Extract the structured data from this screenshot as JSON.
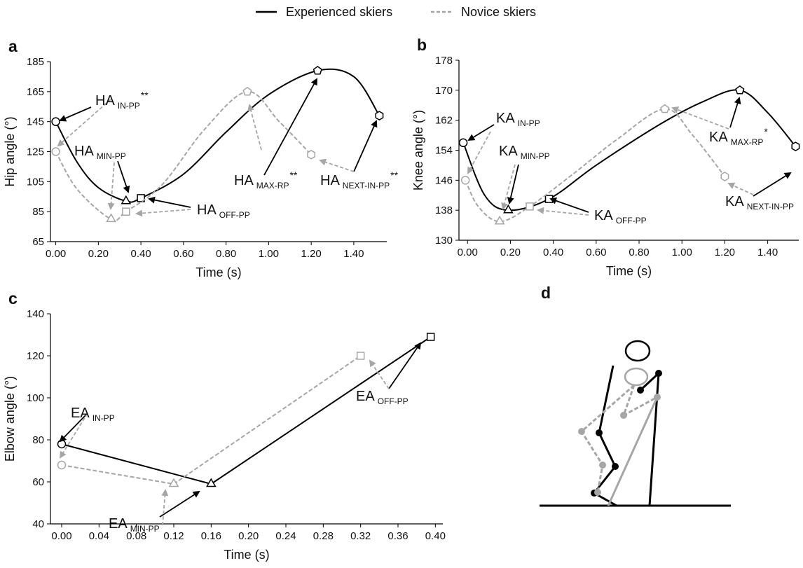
{
  "legend_chart": 0,
  "chart_data": [
    {
      "type": "line",
      "panel": "a",
      "x_label": "Time (s)",
      "y_label": "Hip angle (°)",
      "smooth": true,
      "xlim": [
        -0.025,
        1.555
      ],
      "ylim": [
        65,
        185
      ],
      "xticks": [
        {
          "value": 0,
          "label": "0.00"
        },
        {
          "value": 0.2,
          "label": "0.20"
        },
        {
          "value": 0.4,
          "label": "0.40"
        },
        {
          "value": 0.6,
          "label": "0.60"
        },
        {
          "value": 0.8,
          "label": "0.80"
        },
        {
          "value": 1.0,
          "label": "1.00"
        },
        {
          "value": 1.2,
          "label": "1.20"
        },
        {
          "value": 1.4,
          "label": "1.40"
        }
      ],
      "yticks": [
        65,
        85,
        105,
        125,
        145,
        165,
        185
      ],
      "series": [
        {
          "name": "Experienced skiers",
          "color": "#000000",
          "dash": false,
          "x": [
            0,
            0.1,
            0.2,
            0.33,
            0.4,
            0.6,
            0.8,
            1.0,
            1.23,
            1.4,
            1.52
          ],
          "values": [
            145,
            118,
            101,
            92,
            94,
            110,
            138,
            163,
            179,
            175,
            149
          ],
          "markers": [
            "circle",
            null,
            null,
            "triangle",
            "square",
            null,
            null,
            null,
            "pentagon",
            null,
            "hexagon"
          ]
        },
        {
          "name": "Novice skiers",
          "color": "#a6a6a6",
          "dash": true,
          "x": [
            0,
            0.1,
            0.26,
            0.33,
            0.5,
            0.7,
            0.9,
            1.05,
            1.2
          ],
          "values": [
            125,
            100,
            80,
            85,
            103,
            140,
            165,
            145,
            123
          ],
          "markers": [
            "circle",
            null,
            "triangle",
            "square",
            null,
            null,
            "pentagon",
            null,
            "hexagon"
          ]
        }
      ],
      "annotations": [
        {
          "text": "HA",
          "sub": "IN-PP",
          "sup": "**"
        },
        {
          "text": "HA",
          "sub": "MIN-PP"
        },
        {
          "text": "HA",
          "sub": "OFF-PP"
        },
        {
          "text": "HA",
          "sub": "MAX-RP",
          "sup": "**"
        },
        {
          "text": "HA",
          "sub": "NEXT-IN-PP",
          "sup": "**"
        }
      ]
    },
    {
      "type": "line",
      "panel": "b",
      "x_label": "Time (s)",
      "y_label": "Knee angle (°)",
      "smooth": true,
      "xlim": [
        -0.04,
        1.545
      ],
      "ylim": [
        130,
        178
      ],
      "xticks": [
        {
          "value": 0,
          "label": "0.00"
        },
        {
          "value": 0.2,
          "label": "0.20"
        },
        {
          "value": 0.4,
          "label": "0.40"
        },
        {
          "value": 0.6,
          "label": "0.60"
        },
        {
          "value": 0.8,
          "label": "0.80"
        },
        {
          "value": 1.0,
          "label": "1.00"
        },
        {
          "value": 1.2,
          "label": "1.20"
        },
        {
          "value": 1.4,
          "label": "1.40"
        }
      ],
      "yticks": [
        130,
        138,
        146,
        154,
        162,
        170,
        178
      ],
      "series": [
        {
          "color": "#000000",
          "dash": false,
          "x": [
            -0.02,
            0.08,
            0.19,
            0.38,
            0.6,
            0.9,
            1.1,
            1.27,
            1.4,
            1.53
          ],
          "values": [
            156,
            142,
            138,
            141,
            150,
            161,
            167,
            170,
            164,
            155
          ],
          "markers": [
            "circle",
            null,
            "triangle",
            "square",
            null,
            null,
            null,
            "pentagon",
            null,
            "hexagon"
          ]
        },
        {
          "color": "#a6a6a6",
          "dash": true,
          "x": [
            -0.01,
            0.05,
            0.15,
            0.29,
            0.5,
            0.7,
            0.92,
            1.05,
            1.2
          ],
          "values": [
            146,
            139,
            135,
            139,
            148,
            157,
            165,
            158,
            147
          ],
          "markers": [
            "circle",
            null,
            "triangle",
            "square",
            null,
            null,
            "pentagon",
            null,
            "hexagon"
          ]
        }
      ],
      "annotations": [
        {
          "text": "KA",
          "sub": "IN-PP"
        },
        {
          "text": "KA",
          "sub": "MIN-PP"
        },
        {
          "text": "KA",
          "sub": "OFF-PP"
        },
        {
          "text": "KA",
          "sub": "MAX-RP",
          "sup": "*"
        },
        {
          "text": "KA",
          "sub": "NEXT-IN-PP"
        }
      ]
    },
    {
      "type": "line",
      "panel": "c",
      "x_label": "Time (s)",
      "y_label": "Elbow angle (°)",
      "smooth": false,
      "xlim": [
        -0.012,
        0.408
      ],
      "ylim": [
        40,
        140
      ],
      "xticks": [
        {
          "value": 0,
          "label": "0.00"
        },
        {
          "value": 0.04,
          "label": "0.04"
        },
        {
          "value": 0.08,
          "label": "0.08"
        },
        {
          "value": 0.12,
          "label": "0.12"
        },
        {
          "value": 0.16,
          "label": "0.16"
        },
        {
          "value": 0.2,
          "label": "0.20"
        },
        {
          "value": 0.24,
          "label": "0.24"
        },
        {
          "value": 0.28,
          "label": "0.28"
        },
        {
          "value": 0.32,
          "label": "0.32"
        },
        {
          "value": 0.36,
          "label": "0.36"
        },
        {
          "value": 0.4,
          "label": "0.40"
        }
      ],
      "yticks": [
        40,
        60,
        80,
        100,
        120,
        140
      ],
      "series": [
        {
          "color": "#000000",
          "dash": false,
          "x": [
            0,
            0.16,
            0.395
          ],
          "values": [
            78,
            59,
            129
          ],
          "markers": [
            "circle",
            "triangle",
            "square"
          ]
        },
        {
          "color": "#a6a6a6",
          "dash": true,
          "x": [
            0,
            0.12,
            0.32
          ],
          "values": [
            68,
            59,
            120
          ],
          "markers": [
            "circle",
            "triangle",
            "square"
          ]
        }
      ],
      "annotations": [
        {
          "text": "EA",
          "sub": "IN-PP"
        },
        {
          "text": "EA",
          "sub": "MIN-PP"
        },
        {
          "text": "EA",
          "sub": "OFF-PP"
        }
      ]
    }
  ],
  "diagram": {
    "panel": "d"
  }
}
